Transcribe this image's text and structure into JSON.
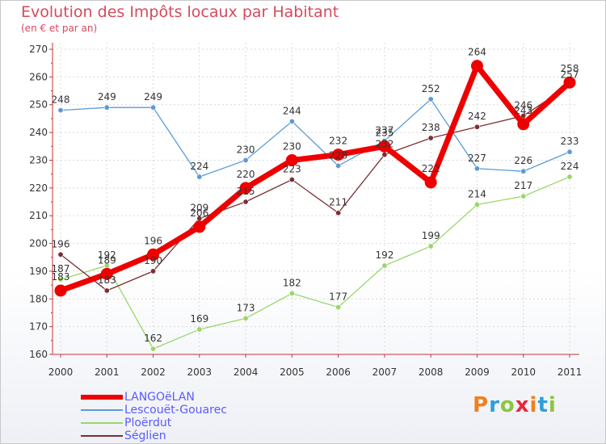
{
  "title": "Evolution des Impôts locaux par Habitant",
  "subtitle": "(en € et par an)",
  "logo": {
    "text": "Proxiti",
    "colors": [
      "#f07f1e",
      "#2f9fd8",
      "#8cc63f",
      "#e8283c",
      "#f07f1e",
      "#2f9fd8",
      "#8cc63f"
    ]
  },
  "chart_data": {
    "type": "line",
    "title": "Evolution des Impôts locaux par Habitant",
    "subtitle": "(en € et par an)",
    "xlabel": "",
    "ylabel": "",
    "x": [
      "2000",
      "2001",
      "2002",
      "2003",
      "2004",
      "2005",
      "2006",
      "2007",
      "2008",
      "2009",
      "2010",
      "2011"
    ],
    "ylim": [
      160,
      270
    ],
    "yticks": [
      160,
      170,
      180,
      190,
      200,
      210,
      220,
      230,
      240,
      250,
      260,
      270
    ],
    "grid": true,
    "legend_position": "bottom-left",
    "series": [
      {
        "name": "Lescouët-Gouarec",
        "color": "#5b9bd5",
        "values": [
          248,
          249,
          249,
          224,
          230,
          244,
          228,
          237,
          252,
          227,
          226,
          233
        ],
        "labels": [
          "248",
          "249",
          "249",
          "224",
          "230",
          "244",
          "228",
          "237",
          "252",
          "227",
          "226",
          "233"
        ]
      },
      {
        "name": "Ploërdut",
        "color": "#9ad66a",
        "values": [
          187,
          192,
          162,
          169,
          173,
          182,
          177,
          192,
          199,
          214,
          217,
          224
        ],
        "labels": [
          "187",
          "192",
          "162",
          "169",
          "173",
          "182",
          "177",
          "192",
          "199",
          "214",
          "217",
          "224"
        ]
      },
      {
        "name": "Séglien",
        "color": "#7a2f35",
        "values": [
          196,
          183,
          190,
          209,
          215,
          223,
          211,
          232,
          238,
          242,
          246,
          257
        ],
        "labels": [
          "196",
          "183",
          "190",
          "209",
          "215",
          "223",
          "211",
          "232",
          "238",
          "242",
          "246",
          "257"
        ]
      },
      {
        "name": "LANGOëLAN",
        "color": "#ee0000",
        "values": [
          183,
          189,
          196,
          206,
          220,
          230,
          232,
          235,
          222,
          264,
          243,
          258
        ],
        "labels": [
          "183",
          "189",
          "196",
          "206",
          "220",
          "230",
          "232",
          "235",
          "222",
          "264",
          "243",
          "258"
        ]
      }
    ]
  },
  "legend": [
    {
      "label": "LANGOëLAN",
      "color": "#ee0000",
      "text_color": "#5b5bff",
      "width": 6
    },
    {
      "label": "Lescouët-Gouarec",
      "color": "#5b9bd5",
      "text_color": "#5b5bff",
      "width": 2
    },
    {
      "label": "Ploërdut",
      "color": "#9ad66a",
      "text_color": "#5b5bff",
      "width": 2
    },
    {
      "label": "Séglien",
      "color": "#7a2f35",
      "text_color": "#5b5bff",
      "width": 2
    }
  ]
}
